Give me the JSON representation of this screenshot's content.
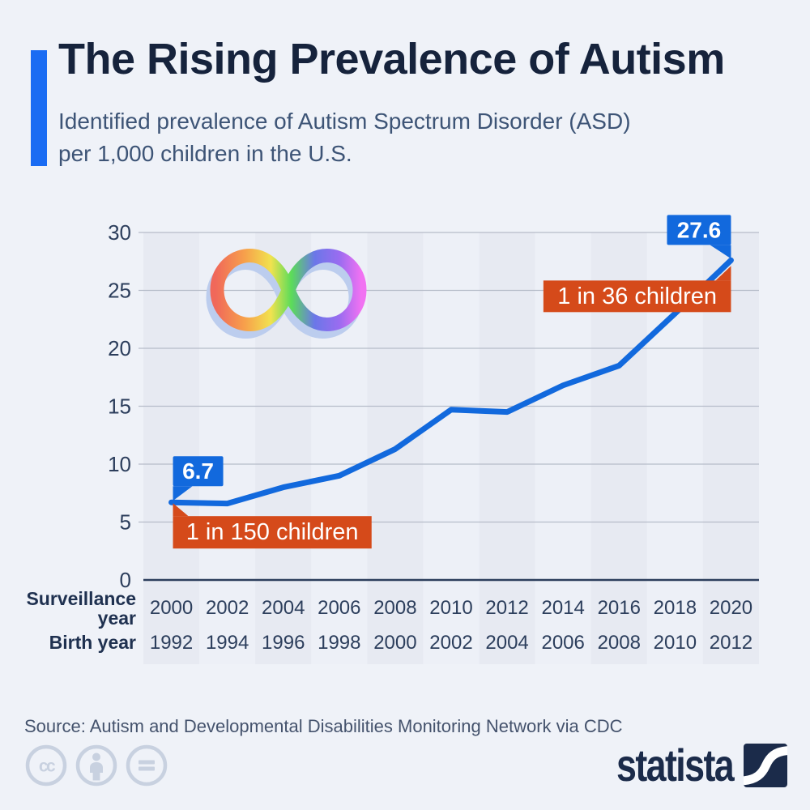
{
  "header": {
    "title": "The Rising Prevalence of Autism",
    "subtitle_lines": [
      "Identified prevalence of Autism Spectrum Disorder (ASD)",
      "per 1,000 children in the U.S."
    ],
    "accent_color": "#1a6cf3"
  },
  "chart_data": {
    "type": "line",
    "title": "The Rising Prevalence of Autism",
    "ylabel": "Identified ASD prevalence per 1,000 children",
    "ylim": [
      0,
      30
    ],
    "yticks": [
      0,
      5,
      10,
      15,
      20,
      25,
      30
    ],
    "grid": "horizontal",
    "x_rows": [
      {
        "label_lines": [
          "Surveillance",
          "year"
        ],
        "values": [
          "2000",
          "2002",
          "2004",
          "2006",
          "2008",
          "2010",
          "2012",
          "2014",
          "2016",
          "2018",
          "2020"
        ]
      },
      {
        "label_lines": [
          "Birth year"
        ],
        "values": [
          "1992",
          "1994",
          "1996",
          "1998",
          "2000",
          "2002",
          "2004",
          "2006",
          "2008",
          "2010",
          "2012"
        ]
      }
    ],
    "series": [
      {
        "name": "ASD prevalence per 1,000 children",
        "values": [
          6.7,
          6.6,
          8.0,
          9.0,
          11.3,
          14.7,
          14.5,
          16.8,
          18.5,
          23.0,
          27.6
        ]
      }
    ],
    "value_callouts": [
      {
        "text": "6.7",
        "x_index": 0
      },
      {
        "text": "27.6",
        "x_index": 10
      }
    ],
    "ratio_badges": [
      {
        "text": "1 in 150 children",
        "x_index": 0
      },
      {
        "text": "1 in 36 children",
        "x_index": 10
      }
    ],
    "colors": {
      "line": "#1269dd",
      "value_callout_bg": "#1269dd",
      "ratio_badge_bg": "#d54a1a",
      "band_dark": "#e7eaf2",
      "band_light": "#edf0f7",
      "gridline": "#b6bcc9",
      "axis": "#2c3e5c",
      "tick_text": "#2c3e5c",
      "row_label_text": "#1f3150",
      "callout_text": "#ffffff"
    }
  },
  "footer": {
    "source": "Source: Autism and Developmental Disabilities Monitoring Network via CDC",
    "license_icons": [
      "cc",
      "attribution",
      "no-derivatives"
    ],
    "brand": "statista"
  }
}
